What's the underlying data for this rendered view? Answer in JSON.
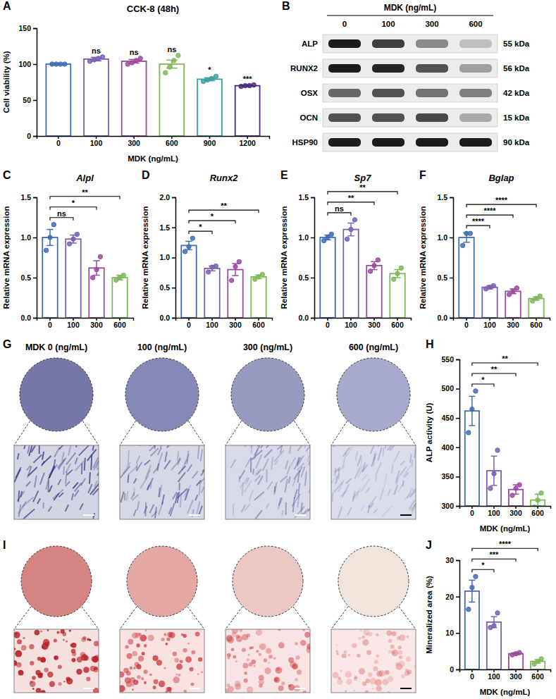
{
  "chart_data": [
    {
      "type": "bar",
      "panel": "A",
      "title": "CCK-8 (48h)",
      "x_label": "MDK (ng/mL)",
      "y_label": "Cell viability (%)",
      "categories": [
        "0",
        "100",
        "300",
        "600",
        "900",
        "1200"
      ],
      "values": [
        100,
        107,
        104,
        100,
        79,
        70
      ],
      "errors": [
        0,
        2.5,
        2.5,
        5.5,
        2,
        0.8
      ],
      "points": [
        [
          100,
          100,
          100,
          100
        ],
        [
          104,
          106,
          108,
          110
        ],
        [
          100,
          102,
          105,
          108
        ],
        [
          88,
          96,
          105,
          112
        ],
        [
          76,
          78,
          80,
          83
        ],
        [
          69,
          70,
          70,
          71
        ]
      ],
      "colors": [
        "#3f6db3",
        "#7b5fb0",
        "#9b4a9e",
        "#7fb85a",
        "#3aa0a0",
        "#4a2c7e"
      ],
      "ylim": [
        0,
        150
      ],
      "yticks": [
        0,
        50,
        100,
        150
      ],
      "annotations": [
        {
          "x": "100",
          "text": "ns"
        },
        {
          "x": "300",
          "text": "ns"
        },
        {
          "x": "600",
          "text": "ns"
        },
        {
          "x": "900",
          "text": "*"
        },
        {
          "x": "1200",
          "text": "***"
        }
      ]
    },
    {
      "type": "bar",
      "panel": "C",
      "title": "Alpl",
      "y_label": "Relative mRNA expression",
      "categories": [
        "0",
        "100",
        "300",
        "600"
      ],
      "values": [
        1.0,
        0.98,
        0.62,
        0.5
      ],
      "errors": [
        0.1,
        0.05,
        0.09,
        0.03
      ],
      "points": [
        [
          0.84,
          1.0,
          1.16
        ],
        [
          0.92,
          0.98,
          1.04
        ],
        [
          0.5,
          0.6,
          0.76
        ],
        [
          0.47,
          0.5,
          0.53
        ]
      ],
      "colors": [
        "#3f6db3",
        "#7b5fb0",
        "#9b4a9e",
        "#7fb85a"
      ],
      "ylim": [
        0,
        1.5
      ],
      "yticks": [
        {
          "value": 0,
          "label": "0.0"
        },
        0.5,
        {
          "value": 1,
          "label": "1.0"
        },
        1.5
      ],
      "annotations": [
        {
          "from": "0",
          "to": "100",
          "text": "ns"
        },
        {
          "from": "0",
          "to": "300",
          "text": "*"
        },
        {
          "from": "0",
          "to": "600",
          "text": "**"
        }
      ]
    },
    {
      "type": "bar",
      "panel": "D",
      "title": "Runx2",
      "y_label": "Relative mRNA expression",
      "categories": [
        "0",
        "100",
        "300",
        "600"
      ],
      "values": [
        1.2,
        0.82,
        0.8,
        0.68
      ],
      "errors": [
        0.07,
        0.04,
        0.1,
        0.03
      ],
      "points": [
        [
          1.1,
          1.18,
          1.32
        ],
        [
          0.76,
          0.84,
          0.86
        ],
        [
          0.62,
          0.85,
          0.93
        ],
        [
          0.64,
          0.68,
          0.72
        ]
      ],
      "colors": [
        "#3f6db3",
        "#7b5fb0",
        "#9b4a9e",
        "#7fb85a"
      ],
      "ylim": [
        0,
        2
      ],
      "yticks": [
        {
          "value": 0,
          "label": "0.0"
        },
        0.5,
        {
          "value": 1,
          "label": "1.0"
        },
        1.5,
        {
          "value": 2,
          "label": "2.0"
        }
      ],
      "annotations": [
        {
          "from": "0",
          "to": "100",
          "text": "*"
        },
        {
          "from": "0",
          "to": "300",
          "text": "*"
        },
        {
          "from": "0",
          "to": "600",
          "text": "**"
        }
      ]
    },
    {
      "type": "bar",
      "panel": "E",
      "title": "Sp7",
      "y_label": "Relative mRNA expression",
      "categories": [
        "0",
        "100",
        "300",
        "600"
      ],
      "values": [
        1.0,
        1.1,
        0.65,
        0.55
      ],
      "errors": [
        0.03,
        0.08,
        0.05,
        0.05
      ],
      "points": [
        [
          0.96,
          1.0,
          1.04
        ],
        [
          0.98,
          1.1,
          1.22
        ],
        [
          0.58,
          0.65,
          0.72
        ],
        [
          0.48,
          0.55,
          0.62
        ]
      ],
      "colors": [
        "#3f6db3",
        "#7b5fb0",
        "#9b4a9e",
        "#7fb85a"
      ],
      "ylim": [
        0,
        1.5
      ],
      "yticks": [
        {
          "value": 0,
          "label": "0.0"
        },
        0.5,
        {
          "value": 1,
          "label": "1.0"
        },
        1.5
      ],
      "annotations": [
        {
          "from": "0",
          "to": "100",
          "text": "ns"
        },
        {
          "from": "0",
          "to": "300",
          "text": "**"
        },
        {
          "from": "0",
          "to": "600",
          "text": "**"
        }
      ]
    },
    {
      "type": "bar",
      "panel": "F",
      "title": "Bglap",
      "y_label": "Relative mRNA expression",
      "categories": [
        "0",
        "100",
        "300",
        "600"
      ],
      "values": [
        1.0,
        0.38,
        0.33,
        0.24
      ],
      "errors": [
        0.06,
        0.02,
        0.03,
        0.02
      ],
      "points": [
        [
          0.9,
          1.05,
          1.05
        ],
        [
          0.36,
          0.38,
          0.4
        ],
        [
          0.29,
          0.33,
          0.37
        ],
        [
          0.21,
          0.24,
          0.27
        ]
      ],
      "colors": [
        "#3f6db3",
        "#7b5fb0",
        "#9b4a9e",
        "#7fb85a"
      ],
      "ylim": [
        0,
        1.5
      ],
      "yticks": [
        {
          "value": 0,
          "label": "0.0"
        },
        0.5,
        {
          "value": 1,
          "label": "1.0"
        },
        1.5
      ],
      "annotations": [
        {
          "from": "0",
          "to": "100",
          "text": "****"
        },
        {
          "from": "0",
          "to": "300",
          "text": "****"
        },
        {
          "from": "0",
          "to": "600",
          "text": "****"
        }
      ]
    },
    {
      "type": "bar",
      "panel": "H",
      "x_label": "MDK (ng/mL)",
      "y_label": "ALP activity (U)",
      "categories": [
        "0",
        "100",
        "300",
        "600"
      ],
      "values": [
        462,
        360,
        328,
        310
      ],
      "errors": [
        25,
        25,
        8,
        10
      ],
      "points": [
        [
          425,
          465,
          496
        ],
        [
          330,
          355,
          395
        ],
        [
          318,
          330,
          336
        ],
        [
          298,
          310,
          322
        ]
      ],
      "colors": [
        "#3f6db3",
        "#7b5fb0",
        "#9b4a9e",
        "#7fb85a"
      ],
      "ylim": [
        300,
        550
      ],
      "yticks": [
        300,
        350,
        400,
        450,
        500,
        550
      ],
      "annotations": [
        {
          "from": "0",
          "to": "100",
          "text": "*"
        },
        {
          "from": "0",
          "to": "300",
          "text": "**"
        },
        {
          "from": "0",
          "to": "600",
          "text": "**"
        }
      ]
    },
    {
      "type": "bar",
      "panel": "J",
      "x_label": "MDK (ng/mL)",
      "y_label": "Mineralized area (%)",
      "categories": [
        "0",
        "100",
        "300",
        "600"
      ],
      "values": [
        21.5,
        13,
        4.3,
        2.2
      ],
      "errors": [
        3,
        1.5,
        0.3,
        0.5
      ],
      "points": [
        [
          16.5,
          22.5,
          25.5
        ],
        [
          11.5,
          12,
          15.5
        ],
        [
          4,
          4.3,
          4.6
        ],
        [
          1.5,
          2.2,
          2.9
        ]
      ],
      "colors": [
        "#3f6db3",
        "#7b5fb0",
        "#9b4a9e",
        "#7fb85a"
      ],
      "ylim": [
        0,
        30
      ],
      "yticks": [
        0,
        10,
        20,
        30
      ],
      "annotations": [
        {
          "from": "0",
          "to": "100",
          "text": "*"
        },
        {
          "from": "0",
          "to": "300",
          "text": "***"
        },
        {
          "from": "0",
          "to": "600",
          "text": "****"
        }
      ]
    }
  ],
  "blot": {
    "panel": "B",
    "header": "MDK (ng/mL)",
    "lanes": [
      "0",
      "100",
      "300",
      "600"
    ],
    "rows": [
      {
        "protein": "ALP",
        "size": "55 kDa",
        "intensity": [
          0.95,
          0.8,
          0.45,
          0.2
        ]
      },
      {
        "protein": "RUNX2",
        "size": "56 kDa",
        "intensity": [
          0.95,
          0.9,
          0.7,
          0.35
        ]
      },
      {
        "protein": "OSX",
        "size": "42 kDa",
        "intensity": [
          0.6,
          0.7,
          0.55,
          0.5
        ]
      },
      {
        "protein": "OCN",
        "size": "15 kDa",
        "intensity": [
          0.7,
          0.7,
          0.75,
          0.3
        ]
      },
      {
        "protein": "HSP90",
        "size": "90 kDa",
        "intensity": [
          0.95,
          0.95,
          0.95,
          0.95
        ]
      }
    ]
  },
  "stain_G": {
    "panel": "G",
    "labels": [
      "MDK 0 (ng/mL)",
      "100 (ng/mL)",
      "300 (ng/mL)",
      "600 (ng/mL)"
    ],
    "colors": [
      "#2a2f78",
      "#353a84",
      "#42478e",
      "#50559a"
    ]
  },
  "stain_I": {
    "panel": "I",
    "colors": [
      "#b81e22",
      "#c4282c",
      "#cc3a3c",
      "#d24a4a"
    ]
  }
}
